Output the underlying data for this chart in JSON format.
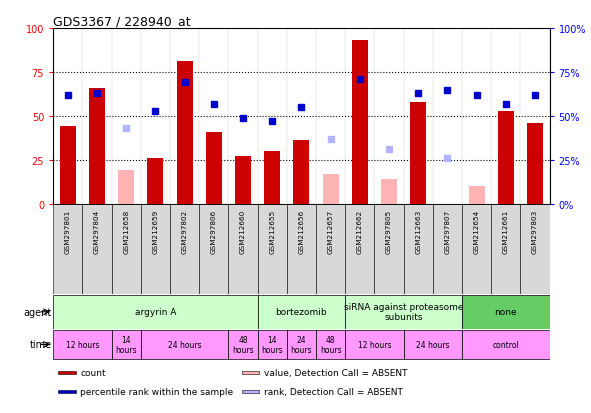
{
  "title": "GDS3367 / 228940_at",
  "samples": [
    "GSM297801",
    "GSM297804",
    "GSM212658",
    "GSM212659",
    "GSM297802",
    "GSM297806",
    "GSM212660",
    "GSM212655",
    "GSM212656",
    "GSM212657",
    "GSM212662",
    "GSM297805",
    "GSM212663",
    "GSM297807",
    "GSM212654",
    "GSM212661",
    "GSM297803"
  ],
  "count": [
    44,
    66,
    null,
    26,
    81,
    41,
    27,
    30,
    36,
    null,
    93,
    null,
    58,
    null,
    null,
    53,
    46
  ],
  "count_absent": [
    null,
    null,
    19,
    null,
    null,
    null,
    null,
    null,
    null,
    17,
    null,
    14,
    null,
    null,
    10,
    null,
    null
  ],
  "rank": [
    62,
    63,
    null,
    53,
    69,
    57,
    49,
    47,
    55,
    null,
    71,
    null,
    63,
    65,
    62,
    57,
    62
  ],
  "rank_absent": [
    null,
    null,
    43,
    null,
    null,
    null,
    null,
    null,
    null,
    37,
    null,
    31,
    null,
    26,
    null,
    null,
    null
  ],
  "agents": [
    {
      "label": "argyrin A",
      "start": 0,
      "end": 7,
      "color": "#ccffcc"
    },
    {
      "label": "bortezomib",
      "start": 7,
      "end": 10,
      "color": "#ccffcc"
    },
    {
      "label": "siRNA against proteasome\nsubunits",
      "start": 10,
      "end": 14,
      "color": "#ccffcc"
    },
    {
      "label": "none",
      "start": 14,
      "end": 17,
      "color": "#66cc66"
    }
  ],
  "times": [
    {
      "label": "12 hours",
      "start": 0,
      "end": 2,
      "color": "#ff99ff"
    },
    {
      "label": "14\nhours",
      "start": 2,
      "end": 3,
      "color": "#ff99ff"
    },
    {
      "label": "24 hours",
      "start": 3,
      "end": 6,
      "color": "#ff99ff"
    },
    {
      "label": "48\nhours",
      "start": 6,
      "end": 7,
      "color": "#ff99ff"
    },
    {
      "label": "14\nhours",
      "start": 7,
      "end": 8,
      "color": "#ff99ff"
    },
    {
      "label": "24\nhours",
      "start": 8,
      "end": 9,
      "color": "#ff99ff"
    },
    {
      "label": "48\nhours",
      "start": 9,
      "end": 10,
      "color": "#ff99ff"
    },
    {
      "label": "12 hours",
      "start": 10,
      "end": 12,
      "color": "#ff99ff"
    },
    {
      "label": "24 hours",
      "start": 12,
      "end": 14,
      "color": "#ff99ff"
    },
    {
      "label": "control",
      "start": 14,
      "end": 17,
      "color": "#ff99ff"
    }
  ],
  "ylim": [
    0,
    100
  ],
  "count_color": "#cc0000",
  "count_absent_color": "#ffb3b3",
  "rank_color": "#0000cc",
  "rank_absent_color": "#b3b3ff",
  "background_color": "#ffffff",
  "sample_bg_color": "#d8d8d8",
  "dotted_levels": [
    25,
    50,
    75
  ],
  "legend_items": [
    {
      "color": "#cc0000",
      "label": "count"
    },
    {
      "color": "#0000cc",
      "label": "percentile rank within the sample"
    },
    {
      "color": "#ffb3b3",
      "label": "value, Detection Call = ABSENT"
    },
    {
      "color": "#b3b3ff",
      "label": "rank, Detection Call = ABSENT"
    }
  ]
}
